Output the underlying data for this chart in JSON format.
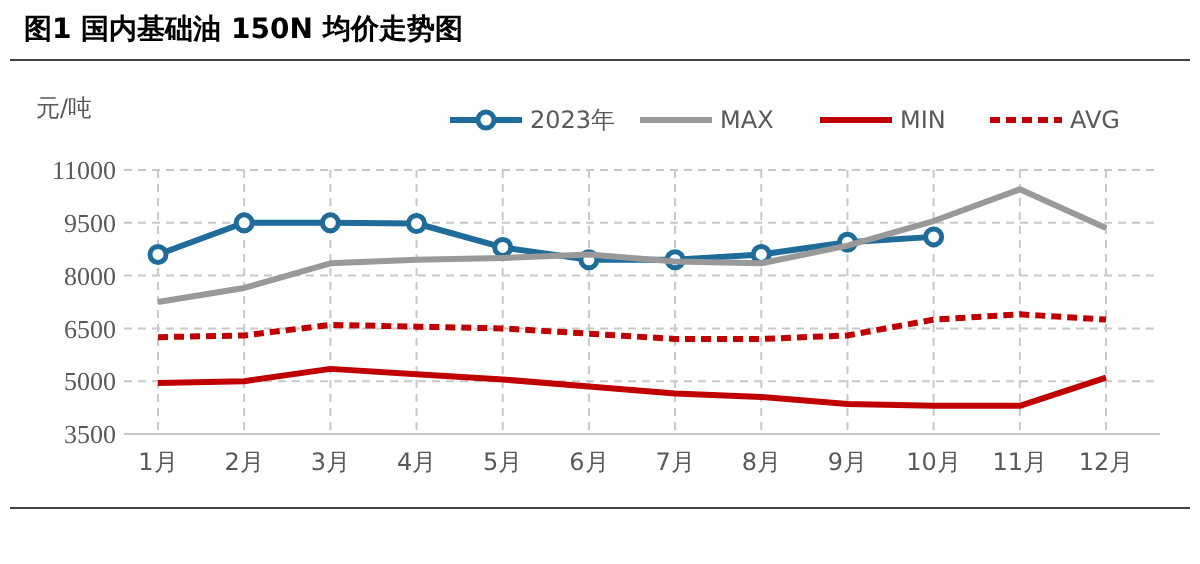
{
  "chart_data": {
    "type": "line",
    "title": "图1 国内基础油 150N 均价走势图",
    "ylabel": "元/吨",
    "categories": [
      "1月",
      "2月",
      "3月",
      "4月",
      "5月",
      "6月",
      "7月",
      "8月",
      "9月",
      "10月",
      "11月",
      "12月"
    ],
    "series": [
      {
        "name": "2023年",
        "color": "#1f6b9a",
        "marker": "circle",
        "values": [
          8600,
          9500,
          9500,
          9480,
          8800,
          8450,
          8450,
          8600,
          8950,
          9100,
          null,
          null
        ]
      },
      {
        "name": "MAX",
        "color": "#999999",
        "values": [
          7250,
          7650,
          8350,
          8450,
          8500,
          8600,
          8400,
          8350,
          8850,
          9550,
          10450,
          9350
        ]
      },
      {
        "name": "MIN",
        "color": "#c00000",
        "values": [
          4950,
          5000,
          5350,
          5200,
          5050,
          4850,
          4650,
          4550,
          4350,
          4300,
          4300,
          5100
        ]
      },
      {
        "name": "AVG",
        "color": "#c00000",
        "line_style": "dashed",
        "values": [
          6250,
          6300,
          6600,
          6550,
          6500,
          6350,
          6200,
          6200,
          6300,
          6750,
          6900,
          6750
        ]
      }
    ],
    "ylim": [
      3500,
      11000
    ],
    "yticks": [
      3500,
      5000,
      6500,
      8000,
      9500,
      11000
    ],
    "grid": true,
    "legend": "top right"
  }
}
